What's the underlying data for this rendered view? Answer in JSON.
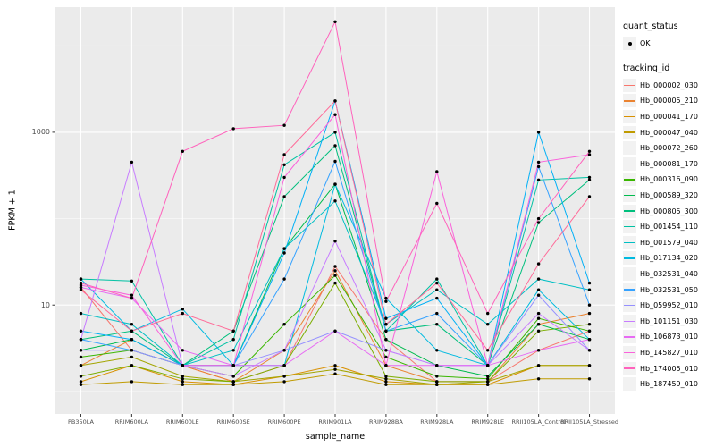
{
  "colors": {
    "panel_bg": "#EBEBEB",
    "grid": "#FFFFFF",
    "point": "#000000",
    "axis_text": "#4D4D4D",
    "legend_key_bg": "#F2F2F2"
  },
  "legend": {
    "quant_status": {
      "title": "quant_status",
      "items": [
        {
          "label": "OK",
          "symbol": "point"
        }
      ]
    },
    "tracking_id": {
      "title": "tracking_id"
    }
  },
  "chart_data": {
    "type": "line",
    "title": "",
    "xlabel": "sample_name",
    "ylabel": "FPKM + 1",
    "yscale": "log10",
    "ylim": [
      0.55,
      28000
    ],
    "grid": true,
    "legend_position": "right",
    "point_shape": "filled-circle (quant_status = OK)",
    "y_major_ticks": [
      {
        "value": 10,
        "label": "10"
      },
      {
        "value": 1000,
        "label": "1000"
      }
    ],
    "y_minor_ticks": [
      1,
      100,
      10000
    ],
    "x": [
      "PB350LA",
      "RRIM600LA",
      "RRIM600LE",
      "RRIM600SE",
      "RRIM600PE",
      "RRIM901LA",
      "RRIM928BA",
      "RRIM928LA",
      "RRIM928LE",
      "RRII105LA_Control",
      "RRII105LA_Stressed"
    ],
    "series": [
      {
        "name": "Hb_000002_030",
        "color": "#F8766D",
        "values": [
          16,
          3,
          2,
          1.3,
          2,
          28,
          4,
          1.3,
          1.3,
          3,
          5
        ]
      },
      {
        "name": "Hb_000005_210",
        "color": "#EA8331",
        "values": [
          2,
          4,
          2,
          1.3,
          3,
          25,
          2,
          1.3,
          1.3,
          6,
          8
        ]
      },
      {
        "name": "Hb_000041_170",
        "color": "#D89000",
        "values": [
          1.3,
          2,
          1.3,
          1.2,
          1.5,
          2,
          1.3,
          1.2,
          1.2,
          2,
          2
        ]
      },
      {
        "name": "Hb_000047_040",
        "color": "#C09B00",
        "values": [
          1.2,
          1.3,
          1.2,
          1.2,
          1.3,
          1.6,
          1.2,
          1.2,
          1.2,
          1.4,
          1.4
        ]
      },
      {
        "name": "Hb_000072_260",
        "color": "#A3A500",
        "values": [
          2,
          2.5,
          1.5,
          1.3,
          1.5,
          1.8,
          1.4,
          1.2,
          1.3,
          2,
          2
        ]
      },
      {
        "name": "Hb_000081_170",
        "color": "#7CAE00",
        "values": [
          1.5,
          2,
          1.4,
          1.3,
          2,
          18,
          1.5,
          1.3,
          1.3,
          5,
          6
        ]
      },
      {
        "name": "Hb_000316_090",
        "color": "#39B600",
        "values": [
          2.5,
          3,
          2,
          1.5,
          6,
          22,
          2.5,
          1.5,
          1.4,
          7,
          5
        ]
      },
      {
        "name": "Hb_000589_320",
        "color": "#00BB4E",
        "values": [
          3,
          4,
          2,
          2,
          45,
          250,
          4,
          2,
          1.5,
          6,
          4
        ]
      },
      {
        "name": "Hb_000805_300",
        "color": "#00BF7D",
        "values": [
          4,
          5,
          2,
          5,
          180,
          700,
          5,
          6,
          2,
          90,
          280
        ]
      },
      {
        "name": "Hb_001454_110",
        "color": "#00C1A3",
        "values": [
          20,
          19,
          2,
          4,
          420,
          1000,
          5,
          20,
          2,
          280,
          300
        ]
      },
      {
        "name": "Hb_001579_040",
        "color": "#00BFC4",
        "values": [
          8,
          6,
          2,
          3,
          45,
          160,
          6,
          15,
          6,
          20,
          15
        ]
      },
      {
        "name": "Hb_017134_020",
        "color": "#00BAE0",
        "values": [
          20,
          5,
          9,
          2,
          2,
          250,
          12,
          3,
          2,
          15,
          4
        ]
      },
      {
        "name": "Hb_032531_040",
        "color": "#00B0F6",
        "values": [
          5,
          4,
          2,
          2,
          40,
          2300,
          7,
          12,
          2,
          1000,
          18
        ]
      },
      {
        "name": "Hb_032531_050",
        "color": "#35A2FF",
        "values": [
          4,
          3,
          2,
          2,
          20,
          460,
          5,
          8,
          2,
          400,
          10
        ]
      },
      {
        "name": "Hb_059952_010",
        "color": "#9590FF",
        "values": [
          3,
          3,
          2,
          2,
          3,
          5,
          3,
          2,
          2,
          13,
          3
        ]
      },
      {
        "name": "Hb_101151_030",
        "color": "#C77CFF",
        "values": [
          4,
          450,
          2,
          1.5,
          3,
          55,
          3,
          2,
          2,
          8,
          3
        ]
      },
      {
        "name": "Hb_106873_010",
        "color": "#E76BF3",
        "values": [
          16,
          12,
          3,
          2,
          2,
          5,
          2,
          2,
          2,
          3,
          4
        ]
      },
      {
        "name": "Hb_145827_010",
        "color": "#FA62DB",
        "values": [
          17,
          13,
          2,
          2,
          300,
          1600,
          2,
          350,
          2,
          450,
          550
        ]
      },
      {
        "name": "Hb_174005_010",
        "color": "#FF62BC",
        "values": [
          18,
          12,
          600,
          1100,
          1200,
          19000,
          11,
          150,
          8,
          100,
          600
        ]
      },
      {
        "name": "Hb_187459_010",
        "color": "#FF6A98",
        "values": [
          15,
          5,
          8,
          5,
          550,
          2300,
          6,
          18,
          3,
          30,
          180
        ]
      }
    ]
  }
}
